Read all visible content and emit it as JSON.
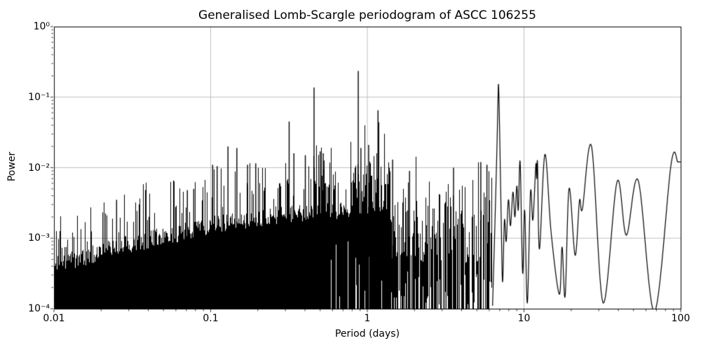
{
  "chart_data": {
    "type": "line",
    "title": "Generalised Lomb-Scargle periodogram of ASCC 106255",
    "xlabel": "Period (days)",
    "ylabel": "Power",
    "x_scale": "log",
    "y_scale": "log",
    "xlim": [
      0.01,
      100
    ],
    "ylim": [
      0.0001,
      1
    ],
    "grid": true,
    "legend": "none",
    "line_color": "#000000",
    "grid_color": "#b0b0b0",
    "x_ticks": [
      0.01,
      0.1,
      1,
      10,
      100
    ],
    "x_tick_labels": [
      "0.01",
      "0.1",
      "1",
      "10",
      "100"
    ],
    "y_ticks": [
      1,
      0.1,
      0.01,
      0.001,
      0.0001
    ],
    "y_tick_labels": [
      "10⁰",
      "10⁻¹",
      "10⁻²",
      "10⁻³",
      "10⁻⁴"
    ],
    "noise_envelope": [
      [
        0.01,
        0.00042
      ],
      [
        0.016,
        0.00055
      ],
      [
        0.025,
        0.00075
      ],
      [
        0.04,
        0.00095
      ],
      [
        0.063,
        0.0012
      ],
      [
        0.1,
        0.00155
      ],
      [
        0.16,
        0.0018
      ],
      [
        0.25,
        0.0021
      ],
      [
        0.4,
        0.0023
      ],
      [
        0.63,
        0.0025
      ],
      [
        1.0,
        0.003
      ],
      [
        1.4,
        0.0026
      ],
      [
        2.0,
        0.0022
      ],
      [
        3.2,
        0.0019
      ],
      [
        5.0,
        0.002
      ],
      [
        6.3,
        0.0021
      ]
    ],
    "dense_region_max_period": 1.4,
    "noise_region_max_period": 6.25,
    "major_peaks": [
      [
        0.0251,
        0.0035
      ],
      [
        0.071,
        0.0048
      ],
      [
        0.078,
        0.005
      ],
      [
        0.103,
        0.011
      ],
      [
        0.11,
        0.0105
      ],
      [
        0.129,
        0.02
      ],
      [
        0.147,
        0.019
      ],
      [
        0.172,
        0.011
      ],
      [
        0.194,
        0.0115
      ],
      [
        0.317,
        0.045
      ],
      [
        0.34,
        0.016
      ],
      [
        0.402,
        0.015
      ],
      [
        0.457,
        0.137
      ],
      [
        0.5,
        0.017
      ],
      [
        0.523,
        0.016
      ],
      [
        0.875,
        0.235
      ],
      [
        0.91,
        0.019
      ],
      [
        1.02,
        0.021
      ],
      [
        1.17,
        0.065
      ],
      [
        1.45,
        0.013
      ],
      [
        1.86,
        0.009
      ],
      [
        3.55,
        0.01
      ],
      [
        5.3,
        0.012
      ],
      [
        5.8,
        0.011
      ]
    ],
    "smooth_tail": [
      [
        6.3,
        0.00011
      ],
      [
        6.5,
        0.0012
      ],
      [
        6.7,
        0.015
      ],
      [
        6.83,
        0.1
      ],
      [
        6.87,
        0.152
      ],
      [
        6.92,
        0.1
      ],
      [
        7.02,
        0.02
      ],
      [
        7.15,
        0.002
      ],
      [
        7.3,
        0.00024
      ],
      [
        7.5,
        0.0018
      ],
      [
        7.7,
        0.0009
      ],
      [
        7.95,
        0.0035
      ],
      [
        8.2,
        0.0015
      ],
      [
        8.5,
        0.0045
      ],
      [
        8.75,
        0.002
      ],
      [
        9.0,
        0.0055
      ],
      [
        9.2,
        0.0025
      ],
      [
        9.45,
        0.012
      ],
      [
        9.8,
        0.00032
      ],
      [
        10.1,
        0.0025
      ],
      [
        10.5,
        0.00012
      ],
      [
        11.0,
        0.0045
      ],
      [
        11.4,
        0.0018
      ],
      [
        11.9,
        0.011
      ],
      [
        12.05,
        0.007
      ],
      [
        12.2,
        0.0115
      ],
      [
        12.55,
        0.0007
      ],
      [
        13.6,
        0.0155
      ],
      [
        14.9,
        0.0012
      ],
      [
        16.8,
        0.00016
      ],
      [
        17.5,
        0.00075
      ],
      [
        18.3,
        0.00015
      ],
      [
        19.4,
        0.0051
      ],
      [
        21.2,
        0.00057
      ],
      [
        22.6,
        0.0034
      ],
      [
        23.6,
        0.0026
      ],
      [
        27.0,
        0.02
      ],
      [
        32.0,
        0.00012
      ],
      [
        39.3,
        0.0064
      ],
      [
        45.0,
        0.0011
      ],
      [
        53.6,
        0.0066
      ],
      [
        68.0,
        9e-05
      ],
      [
        87.0,
        0.0115
      ],
      [
        96.0,
        0.012
      ],
      [
        100.0,
        0.012
      ]
    ]
  }
}
